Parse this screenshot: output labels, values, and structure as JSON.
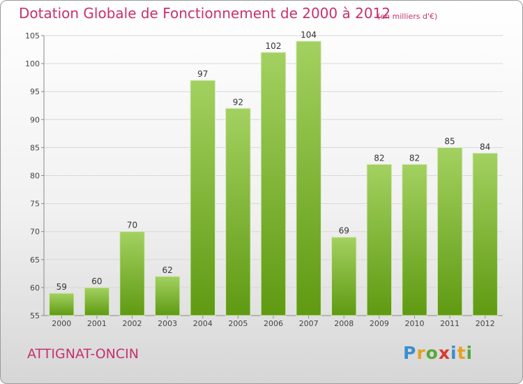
{
  "title": "Dotation Globale de Fonctionnement de 2000 à 2012",
  "unit": "(en milliers d'€)",
  "commune": "ATTIGNAT-ONCIN",
  "logo": {
    "letters": [
      "P",
      "r",
      "o",
      "x",
      "i",
      "t",
      "i"
    ],
    "colors": [
      "#3b8ed0",
      "#e8a020",
      "#58a83c",
      "#d83a2c",
      "#3b8ed0",
      "#e8a020",
      "#58a83c"
    ]
  },
  "colors": {
    "title": "#c8306e",
    "bar_top": "#a3d160",
    "bar_bottom": "#5f9a12",
    "grid": "#d8d8d8"
  },
  "chart_data": {
    "type": "bar",
    "title": "Dotation Globale de Fonctionnement de 2000 à 2012",
    "categories": [
      "2000",
      "2001",
      "2002",
      "2003",
      "2004",
      "2005",
      "2006",
      "2007",
      "2008",
      "2009",
      "2010",
      "2011",
      "2012"
    ],
    "values": [
      59,
      60,
      70,
      62,
      97,
      92,
      102,
      104,
      69,
      82,
      82,
      85,
      84
    ],
    "ylim": [
      55,
      105
    ],
    "yticks": [
      55,
      60,
      65,
      70,
      75,
      80,
      85,
      90,
      95,
      100,
      105
    ],
    "xlabel": "",
    "ylabel": "",
    "grid": true,
    "data_labels": true
  }
}
